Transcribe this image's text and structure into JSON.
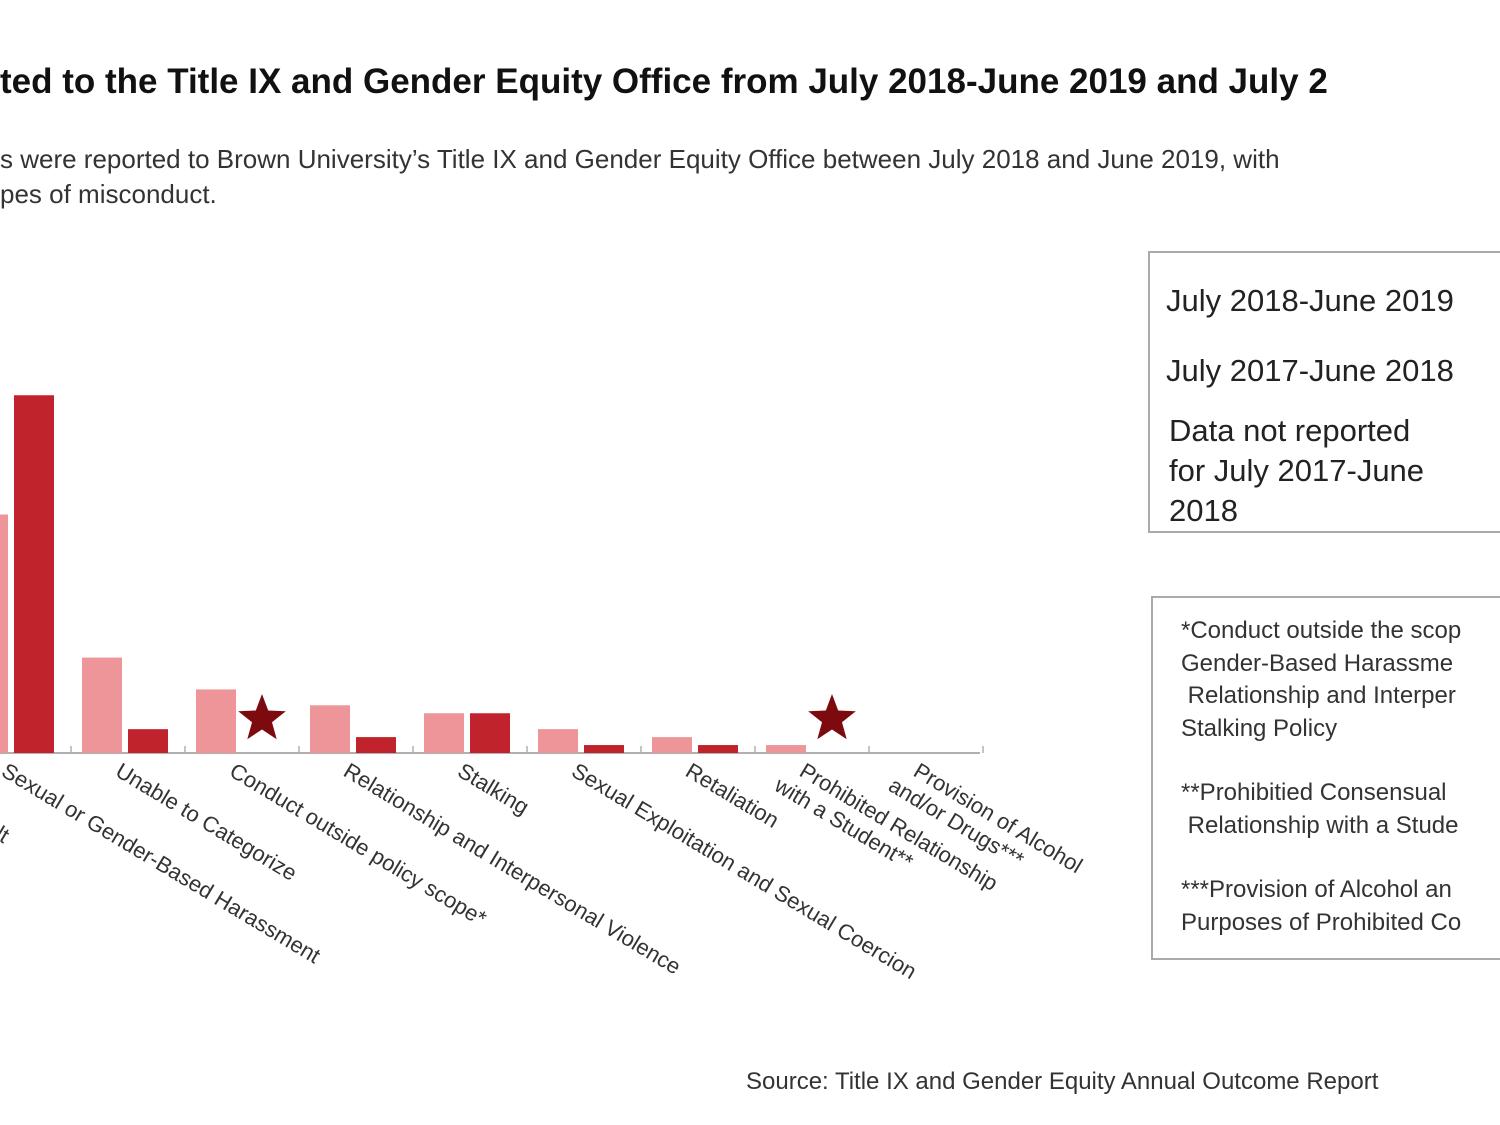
{
  "title": "ted to the Title IX and Gender Equity Office from July 2018-June 2019 and July 2",
  "subtitle_lines": [
    "s were reported to Brown University’s Title IX and Gender Equity Office between July 2018 and June 2019, with",
    "pes of misconduct."
  ],
  "legend": {
    "items": [
      "July 2018-June 2019",
      "July 2017-June 2018"
    ],
    "not_reported_lines": [
      "Data not reported",
      "for July 2017-June",
      "2018"
    ],
    "not_reported_icon": "star-icon"
  },
  "footnotes": [
    "*Conduct outside the scop\nGender-Based Harassme\n Relationship and Interper\nStalking Policy",
    "**Prohibitied Consensual \n Relationship with a Stude",
    "***Provision of Alcohol an\nPurposes of Prohibited Co"
  ],
  "source": "Source: Title IX and Gender Equity Annual Outcome Report",
  "colors": {
    "light": "#ee959a",
    "dark": "#c0232b",
    "star": "#7d0a0f",
    "axis": "#b0b0b0"
  },
  "chart_data": {
    "type": "bar",
    "partial_label": "lt",
    "categories": [
      [
        "Sexual or Gender-Based Harassment"
      ],
      [
        "Unable to Categorize"
      ],
      [
        "Conduct outside policy scope*"
      ],
      [
        "Relationship and Interpersonal Violence"
      ],
      [
        "Stalking"
      ],
      [
        "Sexual Exploitation and Sexual Coercion"
      ],
      [
        "Retaliation"
      ],
      [
        "Prohibited Relationship",
        "with a Student**"
      ],
      [
        "Provision of Alcohol",
        "and/or Drugs***"
      ]
    ],
    "series": [
      {
        "values": [
          30,
          12,
          8,
          6,
          5,
          3,
          2,
          1,
          0
        ]
      },
      {
        "values": [
          45,
          3,
          null,
          2,
          5,
          1,
          1,
          null,
          null
        ]
      }
    ],
    "not_reported_markers": [
      2,
      7
    ],
    "grid": false
  }
}
